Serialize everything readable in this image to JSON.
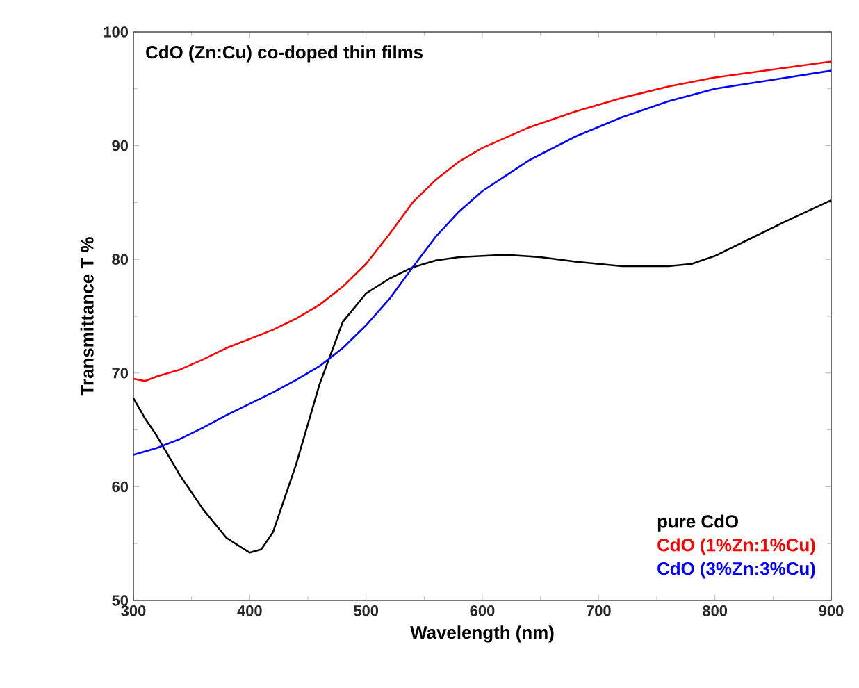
{
  "chart_data": {
    "type": "line",
    "title": "CdO (Zn:Cu) co-doped thin films",
    "xlabel": "Wavelength (nm)",
    "ylabel": "Transmittance T %",
    "xlim": [
      300,
      900
    ],
    "ylim": [
      50,
      100
    ],
    "xticks": [
      300,
      400,
      500,
      600,
      700,
      800,
      900
    ],
    "yticks": [
      50,
      60,
      70,
      80,
      90,
      100
    ],
    "legend": "bottom right",
    "grid": false,
    "marker": "none",
    "line_style": "solid",
    "series": [
      {
        "name": "pure CdO",
        "color": "#000000",
        "x": [
          300,
          310,
          320,
          340,
          360,
          380,
          400,
          410,
          420,
          440,
          460,
          480,
          500,
          520,
          540,
          560,
          580,
          600,
          620,
          650,
          680,
          720,
          760,
          780,
          800,
          830,
          860,
          900
        ],
        "values": [
          67.8,
          66,
          64.5,
          61,
          58,
          55.5,
          54.2,
          54.5,
          56,
          62,
          69,
          74.5,
          77,
          78.3,
          79.3,
          79.9,
          80.2,
          80.3,
          80.4,
          80.2,
          79.8,
          79.4,
          79.4,
          79.6,
          80.3,
          81.8,
          83.3,
          85.2
        ]
      },
      {
        "name": "CdO (1%Zn:1%Cu)",
        "color": "#ff0000",
        "x": [
          300,
          310,
          320,
          340,
          360,
          380,
          400,
          420,
          440,
          460,
          480,
          500,
          520,
          540,
          560,
          580,
          600,
          640,
          680,
          720,
          760,
          800,
          850,
          900
        ],
        "values": [
          69.5,
          69.3,
          69.7,
          70.3,
          71.2,
          72.2,
          73,
          73.8,
          74.8,
          76,
          77.6,
          79.6,
          82.2,
          85,
          87,
          88.6,
          89.8,
          91.6,
          93,
          94.2,
          95.2,
          96,
          96.7,
          97.4
        ]
      },
      {
        "name": "CdO (3%Zn:3%Cu)",
        "color": "#0000ff",
        "x": [
          300,
          320,
          340,
          360,
          380,
          400,
          420,
          440,
          460,
          480,
          500,
          520,
          540,
          560,
          580,
          600,
          640,
          680,
          720,
          760,
          800,
          850,
          900
        ],
        "values": [
          62.8,
          63.4,
          64.2,
          65.2,
          66.3,
          67.3,
          68.3,
          69.4,
          70.6,
          72.2,
          74.2,
          76.5,
          79.3,
          82,
          84.2,
          86,
          88.7,
          90.8,
          92.5,
          93.9,
          95,
          95.8,
          96.6
        ]
      }
    ]
  }
}
